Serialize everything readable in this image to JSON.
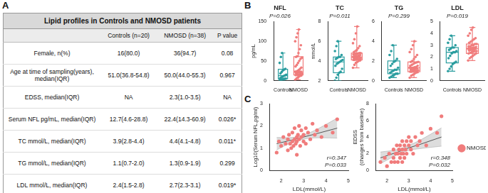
{
  "panel_labels": [
    "A",
    "B",
    "C"
  ],
  "table": {
    "title": "Lipid profiles in Controls and NMOSD patients",
    "header": [
      "",
      "Controls (n=20)",
      "NMOSD (n=38)",
      "P value"
    ],
    "rows": [
      [
        "Female, n(%)",
        "16(80.0)",
        "36(94.7)",
        "0.08"
      ],
      [
        "Age at time of sampling(years), median(IQR)",
        "51.0(36.8-54.8)",
        "50.0(44.0-55.3)",
        "0.967"
      ],
      [
        "EDSS, median(IQR)",
        "NA",
        "2.3(1.0-3.5)",
        "NA"
      ],
      [
        "Serum NFL pg/mL, median(IQR)",
        "12.7(4.6-28.8)",
        "22.4(14.3-60.9)",
        "0.026*"
      ],
      [
        "TC mmol/L, median(IQR)",
        "3.9(2.8-4.4)",
        "4.4(4.1-4.8)",
        "0.011*"
      ],
      [
        "TG mmol/L, median(IQR)",
        "1.1(0.7-2.0)",
        "1.3(0.9-1.9)",
        "0.299"
      ],
      [
        "LDL mmol/L, median(IQR)",
        "2.4(1.5-2.8)",
        "2.7(2.3-3.1)",
        "0.019*"
      ]
    ]
  },
  "chart_data": [
    {
      "type": "box",
      "title": "NFL",
      "annotation": "P=0.026",
      "y_label": "pg/mL",
      "categories": [
        "Controls",
        "NMOSD"
      ],
      "colors": [
        "#2a9d9f",
        "#f07c7c"
      ],
      "ylim": [
        0,
        150
      ],
      "yticks": [
        0,
        50,
        100,
        150
      ],
      "points": [
        [
          1,
          2,
          3,
          4,
          4.5,
          5,
          6,
          8,
          10,
          12,
          13,
          15,
          18,
          22,
          26,
          28,
          30,
          45,
          60,
          70
        ],
        [
          2,
          5,
          8,
          10,
          12,
          13,
          14,
          14.5,
          15,
          16,
          17,
          18,
          19,
          20,
          21,
          22,
          22.5,
          22.5,
          23,
          25,
          27,
          30,
          33,
          36,
          40,
          45,
          50,
          55,
          58,
          60,
          62,
          70,
          80,
          90,
          100,
          110,
          120,
          130
        ]
      ],
      "box": [
        {
          "whisker_low": 1,
          "q1": 4.6,
          "median": 12.7,
          "q3": 28.8,
          "whisker_high": 70
        },
        {
          "whisker_low": 2,
          "q1": 14.3,
          "median": 22.4,
          "q3": 60.9,
          "whisker_high": 130
        }
      ]
    },
    {
      "type": "box",
      "title": "TC",
      "annotation": "P=0.011",
      "y_label": "mmol/L",
      "categories": [
        "Controls",
        "NMOSD"
      ],
      "colors": [
        "#2a9d9f",
        "#f07c7c"
      ],
      "ylim": [
        2,
        8
      ],
      "yticks": [
        2,
        4,
        6,
        8
      ],
      "points": [
        [
          2.0,
          2.3,
          2.6,
          2.8,
          2.9,
          3.2,
          3.5,
          3.7,
          3.8,
          3.9,
          4.0,
          4.1,
          4.2,
          4.3,
          4.4,
          4.4,
          4.6,
          5.0,
          5.5,
          6.0
        ],
        [
          3.3,
          3.6,
          3.8,
          3.9,
          4.0,
          4.05,
          4.1,
          4.1,
          4.15,
          4.2,
          4.2,
          4.25,
          4.3,
          4.3,
          4.35,
          4.4,
          4.4,
          4.4,
          4.45,
          4.5,
          4.5,
          4.55,
          4.6,
          4.65,
          4.7,
          4.7,
          4.75,
          4.8,
          4.8,
          4.9,
          5.0,
          5.1,
          5.3,
          5.5,
          5.8,
          6.2,
          6.8,
          7.5
        ]
      ],
      "box": [
        {
          "whisker_low": 2.0,
          "q1": 2.8,
          "median": 3.9,
          "q3": 4.4,
          "whisker_high": 6.0
        },
        {
          "whisker_low": 3.3,
          "q1": 4.1,
          "median": 4.4,
          "q3": 4.8,
          "whisker_high": 7.5
        }
      ]
    },
    {
      "type": "box",
      "title": "TG",
      "annotation": "P=0.299",
      "categories": [
        "Controls",
        "NMOSD"
      ],
      "colors": [
        "#2a9d9f",
        "#f07c7c"
      ],
      "ylim": [
        0,
        6
      ],
      "yticks": [
        0,
        2,
        4,
        6
      ],
      "points": [
        [
          0.3,
          0.4,
          0.5,
          0.6,
          0.7,
          0.7,
          0.8,
          0.9,
          1.0,
          1.1,
          1.1,
          1.3,
          1.5,
          1.7,
          1.9,
          2.0,
          2.2,
          2.6,
          3.0,
          3.6
        ],
        [
          0.3,
          0.5,
          0.6,
          0.7,
          0.8,
          0.85,
          0.9,
          0.9,
          0.95,
          1.0,
          1.0,
          1.05,
          1.1,
          1.1,
          1.15,
          1.2,
          1.25,
          1.3,
          1.3,
          1.3,
          1.35,
          1.4,
          1.5,
          1.5,
          1.6,
          1.7,
          1.8,
          1.85,
          1.9,
          1.9,
          2.0,
          2.2,
          2.4,
          2.6,
          2.9,
          3.2,
          3.6,
          4.0
        ]
      ],
      "box": [
        {
          "whisker_low": 0.3,
          "q1": 0.7,
          "median": 1.1,
          "q3": 2.0,
          "whisker_high": 3.6
        },
        {
          "whisker_low": 0.3,
          "q1": 0.9,
          "median": 1.3,
          "q3": 1.9,
          "whisker_high": 4.0
        }
      ]
    },
    {
      "type": "box",
      "title": "LDL",
      "annotation": "P=0.019",
      "categories": [
        "Controls",
        "NMOSD"
      ],
      "colors": [
        "#2a9d9f",
        "#f07c7c"
      ],
      "ylim": [
        0,
        5
      ],
      "yticks": [
        0,
        1,
        2,
        3,
        4,
        5
      ],
      "points": [
        [
          0.8,
          1.0,
          1.2,
          1.4,
          1.5,
          1.6,
          1.9,
          2.1,
          2.3,
          2.4,
          2.4,
          2.5,
          2.6,
          2.7,
          2.8,
          2.8,
          3.0,
          3.2,
          3.5,
          3.8
        ],
        [
          1.7,
          1.9,
          2.0,
          2.1,
          2.2,
          2.3,
          2.3,
          2.35,
          2.4,
          2.45,
          2.5,
          2.5,
          2.55,
          2.6,
          2.6,
          2.65,
          2.7,
          2.7,
          2.7,
          2.75,
          2.8,
          2.8,
          2.85,
          2.9,
          2.9,
          3.0,
          3.0,
          3.1,
          3.1,
          3.2,
          3.3,
          3.4,
          3.5,
          3.6,
          3.8,
          4.0,
          4.3,
          4.5
        ]
      ],
      "box": [
        {
          "whisker_low": 0.8,
          "q1": 1.5,
          "median": 2.4,
          "q3": 2.8,
          "whisker_high": 3.8
        },
        {
          "whisker_low": 1.7,
          "q1": 2.3,
          "median": 2.7,
          "q3": 3.1,
          "whisker_high": 4.5
        }
      ]
    },
    {
      "type": "scatter",
      "x_label": "LDL(mmol/L)",
      "y_label": "Log10(Serum NFL,pg/ml)",
      "xlim": [
        1.5,
        5
      ],
      "xticks": [
        2,
        3,
        4,
        5
      ],
      "ylim": [
        0,
        3
      ],
      "yticks": [
        0,
        1,
        2,
        3
      ],
      "series": [
        {
          "name": "NMOSD",
          "color": "#f07c7c",
          "x": [
            1.8,
            1.9,
            2.0,
            2.1,
            2.2,
            2.3,
            2.3,
            2.35,
            2.4,
            2.45,
            2.5,
            2.5,
            2.55,
            2.6,
            2.6,
            2.65,
            2.7,
            2.7,
            2.7,
            2.75,
            2.8,
            2.8,
            2.85,
            2.9,
            2.9,
            3.0,
            3.0,
            3.1,
            3.1,
            3.2,
            3.3,
            3.4,
            3.5,
            3.6,
            3.8,
            4.0,
            4.3,
            4.5
          ],
          "values": [
            0.8,
            1.3,
            1.1,
            1.5,
            1.2,
            0.9,
            1.4,
            1.6,
            1.2,
            1.0,
            1.3,
            1.7,
            1.1,
            1.4,
            1.9,
            1.2,
            1.5,
            1.3,
            0.7,
            1.6,
            1.4,
            2.0,
            1.1,
            1.5,
            1.8,
            1.3,
            1.6,
            1.9,
            1.2,
            1.7,
            1.4,
            2.1,
            1.6,
            1.8,
            1.5,
            2.0,
            1.7,
            2.3
          ]
        }
      ],
      "fit": {
        "x": [
          1.8,
          2.5,
          3.0,
          3.5,
          4.5
        ],
        "y": [
          1.2,
          1.37,
          1.5,
          1.63,
          1.9
        ],
        "ci_low": [
          0.92,
          1.26,
          1.4,
          1.46,
          1.45
        ],
        "ci_high": [
          1.48,
          1.48,
          1.6,
          1.8,
          2.35
        ]
      },
      "annotations": [
        "r=0.347",
        "P=0.033"
      ]
    },
    {
      "type": "scatter",
      "x_label": "LDL(mmol/L)",
      "y_label": [
        "EDSS",
        "(changes from baseline)"
      ],
      "xlim": [
        1.5,
        5
      ],
      "xticks": [
        2,
        3,
        4,
        5
      ],
      "ylim": [
        0,
        8
      ],
      "yticks": [
        0,
        2,
        4,
        6,
        8
      ],
      "legend": "right",
      "series": [
        {
          "name": "NMOSD",
          "color": "#f07c7c",
          "x": [
            1.7,
            1.9,
            2.0,
            2.1,
            2.2,
            2.3,
            2.3,
            2.35,
            2.4,
            2.45,
            2.5,
            2.5,
            2.55,
            2.6,
            2.6,
            2.65,
            2.7,
            2.7,
            2.7,
            2.75,
            2.8,
            2.8,
            2.85,
            2.9,
            2.9,
            3.0,
            3.0,
            3.1,
            3.1,
            3.2,
            3.3,
            3.4,
            3.5,
            3.6,
            3.8,
            4.0,
            4.3,
            4.5
          ],
          "values": [
            1.0,
            1.5,
            0.5,
            2.0,
            1.0,
            1.5,
            2.5,
            1.0,
            2.0,
            3.0,
            1.0,
            2.0,
            2.5,
            1.5,
            3.0,
            2.0,
            1.0,
            2.5,
            3.5,
            2.0,
            3.0,
            1.5,
            2.5,
            3.5,
            2.0,
            3.0,
            4.0,
            2.5,
            3.5,
            2.0,
            4.0,
            3.0,
            3.5,
            4.5,
            3.0,
            5.0,
            4.5,
            6.5
          ]
        }
      ],
      "fit": {
        "x": [
          1.7,
          2.5,
          3.0,
          3.5,
          4.5
        ],
        "y": [
          1.5,
          2.2,
          2.7,
          3.1,
          4.0
        ],
        "ci_low": [
          0.8,
          1.9,
          2.4,
          2.6,
          2.9
        ],
        "ci_high": [
          2.2,
          2.5,
          3.0,
          3.6,
          5.1
        ]
      },
      "annotations": [
        "r=0.348",
        "P=0.032"
      ]
    }
  ]
}
